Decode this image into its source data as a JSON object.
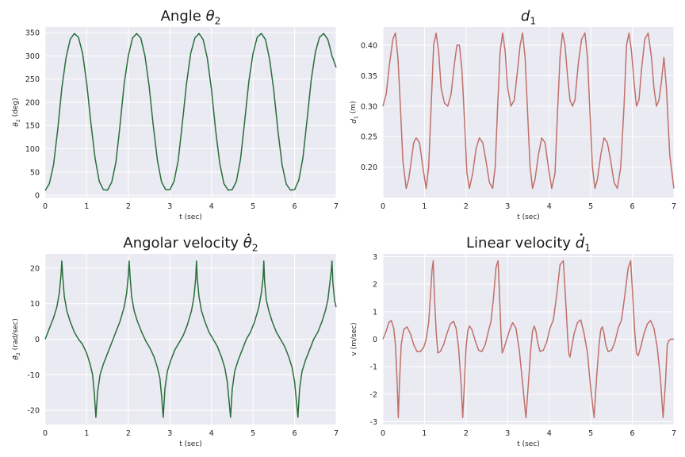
{
  "chart_data": [
    {
      "type": "line",
      "title": "Angle θ2",
      "title_main": "Angle ",
      "title_sym": "θ",
      "title_sub": "2",
      "xlabel": "t (sec)",
      "ylabel": "θ2 (deg)",
      "ylabel_sym": "θ",
      "ylabel_sub": "2",
      "ylabel_rest": " (deg)",
      "xlim": [
        0,
        7
      ],
      "ylim": [
        -5,
        362
      ],
      "xticks": [
        0,
        1,
        2,
        3,
        4,
        5,
        6,
        7
      ],
      "yticks": [
        0,
        50,
        100,
        150,
        200,
        250,
        300,
        350
      ],
      "color": "#2a6e3a",
      "grid": true,
      "series": [
        {
          "x": [
            0,
            0.1,
            0.2,
            0.3,
            0.4,
            0.5,
            0.6,
            0.7,
            0.8,
            0.9,
            1.0,
            1.1,
            1.2,
            1.3,
            1.4,
            1.5,
            1.6,
            1.7,
            1.8,
            1.9,
            2.0,
            2.1,
            2.2,
            2.3,
            2.4,
            2.5,
            2.6,
            2.7,
            2.8,
            2.9,
            3.0,
            3.1,
            3.2,
            3.3,
            3.4,
            3.5,
            3.6,
            3.7,
            3.8,
            3.9,
            4.0,
            4.1,
            4.2,
            4.3,
            4.4,
            4.5,
            4.6,
            4.7,
            4.8,
            4.9,
            5.0,
            5.1,
            5.2,
            5.3,
            5.4,
            5.5,
            5.6,
            5.7,
            5.8,
            5.9,
            6.0,
            6.1,
            6.2,
            6.3,
            6.4,
            6.5,
            6.6,
            6.7,
            6.8,
            6.9,
            7.0
          ],
          "y": [
            10,
            25,
            65,
            140,
            230,
            295,
            335,
            348,
            340,
            305,
            240,
            155,
            80,
            30,
            12,
            11,
            28,
            70,
            150,
            240,
            300,
            338,
            348,
            338,
            300,
            235,
            150,
            75,
            28,
            12,
            12,
            30,
            75,
            155,
            240,
            305,
            338,
            348,
            335,
            295,
            228,
            140,
            68,
            25,
            11,
            12,
            30,
            78,
            160,
            245,
            305,
            340,
            348,
            335,
            292,
            225,
            138,
            65,
            24,
            11,
            12,
            32,
            80,
            162,
            248,
            308,
            340,
            348,
            335,
            300,
            275
          ]
        }
      ]
    },
    {
      "type": "line",
      "title": "d1",
      "title_main": "",
      "title_sym": "d",
      "title_sub": "1",
      "xlabel": "t (sec)",
      "ylabel": "d1 (m)",
      "ylabel_sym": "d",
      "ylabel_sub": "1",
      "ylabel_rest": " (m)",
      "xlim": [
        0,
        7
      ],
      "ylim": [
        0.15,
        0.43
      ],
      "xticks": [
        0,
        1,
        2,
        3,
        4,
        5,
        6,
        7
      ],
      "yticks": [
        0.2,
        0.25,
        0.3,
        0.35,
        0.4
      ],
      "ytick_labels": [
        "0.20",
        "0.25",
        "0.30",
        "0.35",
        "0.40"
      ],
      "color": "#c0706a",
      "grid": true,
      "series": [
        {
          "x": [
            0,
            0.08,
            0.16,
            0.24,
            0.3,
            0.36,
            0.42,
            0.48,
            0.56,
            0.62,
            0.68,
            0.74,
            0.8,
            0.88,
            0.96,
            1.04,
            1.1,
            1.16,
            1.22,
            1.28,
            1.34,
            1.4,
            1.48,
            1.56,
            1.64,
            1.72,
            1.78,
            1.84,
            1.9,
            1.96,
            2.02,
            2.08,
            2.16,
            2.24,
            2.32,
            2.4,
            2.48,
            2.56,
            2.64,
            2.7,
            2.76,
            2.82,
            2.88,
            2.94,
            3.0,
            3.08,
            3.16,
            3.24,
            3.3,
            3.36,
            3.42,
            3.48,
            3.54,
            3.6,
            3.66,
            3.74,
            3.82,
            3.9,
            3.98,
            4.06,
            4.14,
            4.2,
            4.26,
            4.32,
            4.38,
            4.44,
            4.5,
            4.56,
            4.62,
            4.7,
            4.78,
            4.86,
            4.92,
            4.98,
            5.04,
            5.1,
            5.16,
            5.24,
            5.32,
            5.4,
            5.48,
            5.56,
            5.64,
            5.72,
            5.8,
            5.86,
            5.92,
            5.98,
            6.04,
            6.1,
            6.16,
            6.22,
            6.3,
            6.38,
            6.46,
            6.52,
            6.58,
            6.64,
            6.7,
            6.76,
            6.82,
            6.9,
            7.0
          ],
          "y": [
            0.3,
            0.32,
            0.37,
            0.41,
            0.42,
            0.38,
            0.3,
            0.21,
            0.165,
            0.18,
            0.21,
            0.24,
            0.248,
            0.24,
            0.2,
            0.165,
            0.2,
            0.3,
            0.4,
            0.42,
            0.39,
            0.33,
            0.305,
            0.3,
            0.32,
            0.37,
            0.4,
            0.4,
            0.36,
            0.28,
            0.19,
            0.165,
            0.19,
            0.23,
            0.248,
            0.24,
            0.21,
            0.175,
            0.165,
            0.2,
            0.3,
            0.39,
            0.42,
            0.39,
            0.33,
            0.3,
            0.31,
            0.36,
            0.4,
            0.42,
            0.38,
            0.29,
            0.2,
            0.165,
            0.18,
            0.22,
            0.248,
            0.24,
            0.2,
            0.165,
            0.19,
            0.29,
            0.38,
            0.42,
            0.4,
            0.35,
            0.31,
            0.3,
            0.31,
            0.37,
            0.41,
            0.42,
            0.38,
            0.29,
            0.2,
            0.165,
            0.18,
            0.22,
            0.248,
            0.24,
            0.21,
            0.175,
            0.165,
            0.2,
            0.3,
            0.4,
            0.42,
            0.39,
            0.34,
            0.3,
            0.31,
            0.36,
            0.41,
            0.42,
            0.38,
            0.33,
            0.3,
            0.31,
            0.34,
            0.38,
            0.33,
            0.22,
            0.165
          ]
        }
      ]
    },
    {
      "type": "line",
      "title": "Angolar velocity θ2 (dot)",
      "title_main": "Angolar velocity ",
      "title_sym": "θ",
      "title_sub": "2",
      "title_dot": true,
      "xlabel": "t (sec)",
      "ylabel": "θ2 (rad/sec)",
      "ylabel_sym": "θ",
      "ylabel_sub": "2",
      "ylabel_rest": " (rad/sec)",
      "ylabel_dot": true,
      "xlim": [
        0,
        7
      ],
      "ylim": [
        -24,
        24
      ],
      "xticks": [
        0,
        1,
        2,
        3,
        4,
        5,
        6,
        7
      ],
      "yticks": [
        -20,
        -10,
        0,
        10,
        20
      ],
      "color": "#2a6e3a",
      "grid": true,
      "series": [
        {
          "x": [
            0,
            0.1,
            0.2,
            0.28,
            0.34,
            0.38,
            0.4,
            0.42,
            0.46,
            0.52,
            0.6,
            0.7,
            0.8,
            0.9,
            1.0,
            1.08,
            1.14,
            1.18,
            1.22,
            1.26,
            1.32,
            1.4,
            1.5,
            1.6,
            1.7,
            1.8,
            1.9,
            1.96,
            2.0,
            2.02,
            2.04,
            2.08,
            2.14,
            2.22,
            2.32,
            2.42,
            2.52,
            2.62,
            2.7,
            2.76,
            2.8,
            2.84,
            2.88,
            2.94,
            3.02,
            3.12,
            3.22,
            3.32,
            3.42,
            3.52,
            3.58,
            3.62,
            3.64,
            3.66,
            3.7,
            3.76,
            3.84,
            3.94,
            4.04,
            4.14,
            4.24,
            4.32,
            4.38,
            4.42,
            4.46,
            4.5,
            4.56,
            4.64,
            4.74,
            4.84,
            4.94,
            5.04,
            5.14,
            5.2,
            5.24,
            5.26,
            5.28,
            5.32,
            5.38,
            5.46,
            5.56,
            5.66,
            5.76,
            5.86,
            5.94,
            6.0,
            6.04,
            6.08,
            6.12,
            6.18,
            6.26,
            6.36,
            6.46,
            6.56,
            6.66,
            6.74,
            6.8,
            6.84,
            6.88,
            6.9,
            6.92,
            6.96,
            7.0
          ],
          "y": [
            0,
            3,
            6,
            9,
            13,
            18,
            22,
            18,
            12,
            8,
            5,
            2,
            0,
            -1.5,
            -4,
            -7,
            -10,
            -15,
            -22,
            -15,
            -10,
            -7,
            -4,
            -1,
            2,
            5,
            9,
            13,
            18,
            22,
            18,
            12,
            8,
            5,
            2,
            -0.5,
            -2.5,
            -5,
            -8,
            -11,
            -16,
            -22,
            -14,
            -9,
            -6,
            -3,
            -1,
            1,
            4,
            8,
            12,
            17,
            22,
            17,
            12,
            8,
            5,
            2,
            0,
            -2,
            -5,
            -8,
            -12,
            -17,
            -22,
            -14,
            -9,
            -6,
            -3,
            0,
            2,
            5,
            9,
            13,
            17,
            22,
            16,
            11,
            8,
            5,
            2,
            0,
            -2,
            -5,
            -8,
            -12,
            -17,
            -22,
            -14,
            -9,
            -6,
            -3,
            0,
            2,
            5,
            8,
            11,
            15,
            19,
            22,
            16,
            11,
            9
          ]
        }
      ]
    },
    {
      "type": "line",
      "title": "Linear velocity d1 (dot)",
      "title_main": "Linear velocity ",
      "title_sym": "d",
      "title_sub": "1",
      "title_dot": true,
      "xlabel": "t (sec)",
      "ylabel": "v (m/sec)",
      "xlim": [
        0,
        7
      ],
      "ylim": [
        -3.1,
        3.1
      ],
      "xticks": [
        0,
        1,
        2,
        3,
        4,
        5,
        6,
        7
      ],
      "yticks": [
        -3,
        -2,
        -1,
        0,
        1,
        2,
        3
      ],
      "color": "#c0706a",
      "grid": true,
      "series": [
        {
          "x": [
            0,
            0.08,
            0.14,
            0.2,
            0.26,
            0.3,
            0.34,
            0.37,
            0.4,
            0.44,
            0.5,
            0.58,
            0.66,
            0.74,
            0.82,
            0.9,
            0.98,
            1.04,
            1.1,
            1.14,
            1.18,
            1.21,
            1.24,
            1.28,
            1.32,
            1.38,
            1.46,
            1.54,
            1.62,
            1.7,
            1.76,
            1.82,
            1.88,
            1.92,
            1.96,
            2.0,
            2.04,
            2.08,
            2.14,
            2.22,
            2.3,
            2.38,
            2.46,
            2.54,
            2.6,
            2.66,
            2.72,
            2.77,
            2.81,
            2.84,
            2.87,
            2.9,
            2.96,
            3.04,
            3.12,
            3.2,
            3.28,
            3.36,
            3.44,
            3.5,
            3.56,
            3.6,
            3.64,
            3.68,
            3.72,
            3.78,
            3.86,
            3.94,
            4.02,
            4.1,
            4.18,
            4.26,
            4.34,
            4.4,
            4.44,
            4.47,
            4.5,
            4.54,
            4.6,
            4.68,
            4.76,
            4.84,
            4.92,
            5.0,
            5.08,
            5.14,
            5.2,
            5.24,
            5.28,
            5.32,
            5.36,
            5.42,
            5.5,
            5.58,
            5.66,
            5.74,
            5.82,
            5.9,
            5.96,
            6.02,
            6.06,
            6.1,
            6.14,
            6.2,
            6.28,
            6.36,
            6.44,
            6.52,
            6.6,
            6.68,
            6.74,
            6.8,
            6.84,
            6.88,
            6.92,
            6.96,
            7.0
          ],
          "y": [
            0,
            0.3,
            0.6,
            0.68,
            0.4,
            -0.2,
            -1.5,
            -2.85,
            -1.5,
            -0.2,
            0.35,
            0.45,
            0.2,
            -0.2,
            -0.45,
            -0.45,
            -0.3,
            0.0,
            0.6,
            1.5,
            2.5,
            2.85,
            1.5,
            0.3,
            -0.5,
            -0.45,
            -0.2,
            0.2,
            0.55,
            0.65,
            0.4,
            -0.3,
            -1.6,
            -2.85,
            -1.6,
            -0.3,
            0.3,
            0.48,
            0.35,
            -0.05,
            -0.4,
            -0.45,
            -0.2,
            0.3,
            0.65,
            1.5,
            2.6,
            2.85,
            1.4,
            0.2,
            -0.5,
            -0.4,
            -0.1,
            0.3,
            0.6,
            0.4,
            -0.4,
            -1.6,
            -2.85,
            -1.6,
            -0.3,
            0.3,
            0.48,
            0.3,
            -0.1,
            -0.45,
            -0.4,
            -0.1,
            0.4,
            0.7,
            1.6,
            2.7,
            2.85,
            1.3,
            0.2,
            -0.5,
            -0.65,
            -0.3,
            0.2,
            0.6,
            0.7,
            0.2,
            -0.5,
            -1.8,
            -2.85,
            -1.4,
            -0.2,
            0.35,
            0.45,
            0.2,
            -0.2,
            -0.45,
            -0.4,
            -0.1,
            0.4,
            0.7,
            1.6,
            2.6,
            2.85,
            1.3,
            0.2,
            -0.5,
            -0.6,
            -0.3,
            0.2,
            0.55,
            0.68,
            0.4,
            -0.3,
            -1.5,
            -2.85,
            -1.5,
            -0.2,
            -0.05,
            0.0,
            0.0,
            0.0
          ]
        }
      ]
    }
  ]
}
